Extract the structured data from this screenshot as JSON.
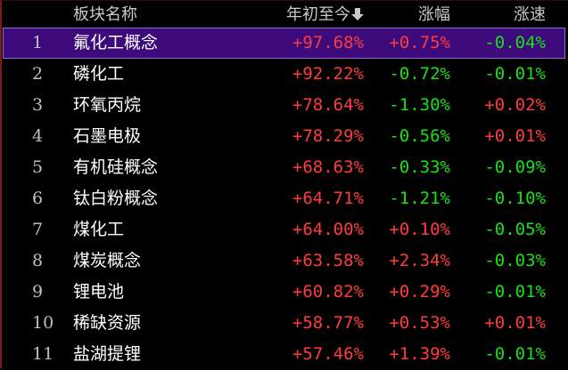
{
  "colors": {
    "up": "#ff3b3b",
    "down": "#18e018",
    "header_text": "#c8c8c8",
    "selected_row": "#3c0a7a",
    "background": "#000000"
  },
  "header": {
    "name": "板块名称",
    "ytd": "年初至今",
    "ytd_sort_icon": "arrow-down-icon",
    "change": "涨幅",
    "speed": "涨速"
  },
  "rows": [
    {
      "idx": "1",
      "name": "氟化工概念",
      "ytd": "+97.68%",
      "change": "+0.75%",
      "speed": "-0.04%",
      "selected": true
    },
    {
      "idx": "2",
      "name": "磷化工",
      "ytd": "+92.22%",
      "change": "-0.72%",
      "speed": "-0.01%"
    },
    {
      "idx": "3",
      "name": "环氧丙烷",
      "ytd": "+78.64%",
      "change": "-1.30%",
      "speed": "+0.02%"
    },
    {
      "idx": "4",
      "name": "石墨电极",
      "ytd": "+78.29%",
      "change": "-0.56%",
      "speed": "+0.01%"
    },
    {
      "idx": "5",
      "name": "有机硅概念",
      "ytd": "+68.63%",
      "change": "-0.33%",
      "speed": "-0.09%"
    },
    {
      "idx": "6",
      "name": "钛白粉概念",
      "ytd": "+64.71%",
      "change": "-1.21%",
      "speed": "-0.10%"
    },
    {
      "idx": "7",
      "name": "煤化工",
      "ytd": "+64.00%",
      "change": "+0.10%",
      "speed": "-0.05%"
    },
    {
      "idx": "8",
      "name": "煤炭概念",
      "ytd": "+63.58%",
      "change": "+2.34%",
      "speed": "-0.03%"
    },
    {
      "idx": "9",
      "name": "锂电池",
      "ytd": "+60.82%",
      "change": "+0.29%",
      "speed": "-0.01%"
    },
    {
      "idx": "10",
      "name": "稀缺资源",
      "ytd": "+58.77%",
      "change": "+0.53%",
      "speed": "+0.01%"
    },
    {
      "idx": "11",
      "name": "盐湖提锂",
      "ytd": "+57.46%",
      "change": "+1.39%",
      "speed": "-0.01%"
    }
  ]
}
